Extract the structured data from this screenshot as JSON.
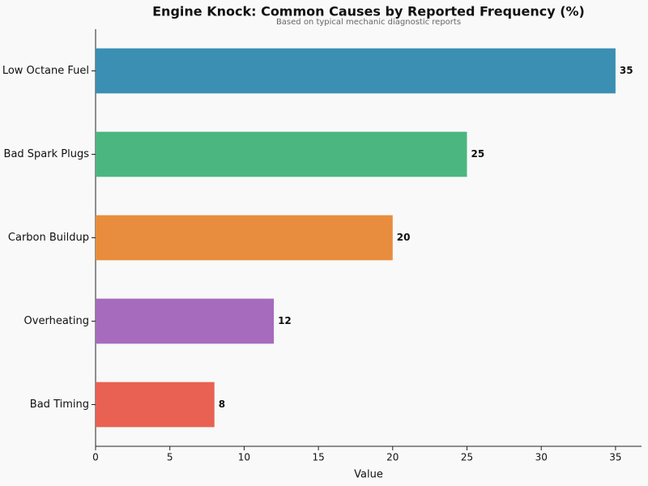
{
  "chart_data": {
    "type": "barh",
    "title": "Engine Knock: Common Causes by Reported Frequency (%)",
    "subtitle": "Based on typical mechanic diagnostic reports",
    "x_label": "Value",
    "categories": [
      "Low Octane Fuel",
      "Bad Spark Plugs",
      "Carbon Buildup",
      "Overheating",
      "Bad Timing"
    ],
    "values": [
      35,
      25,
      20,
      12,
      8
    ],
    "colors": [
      "#3a8fb3",
      "#4bb67f",
      "#e88d3d",
      "#a66bbd",
      "#e96152"
    ],
    "xlim": [
      0,
      36.75
    ],
    "xticks": [
      0,
      5,
      10,
      15,
      20,
      25,
      30,
      35
    ],
    "grid": false
  }
}
